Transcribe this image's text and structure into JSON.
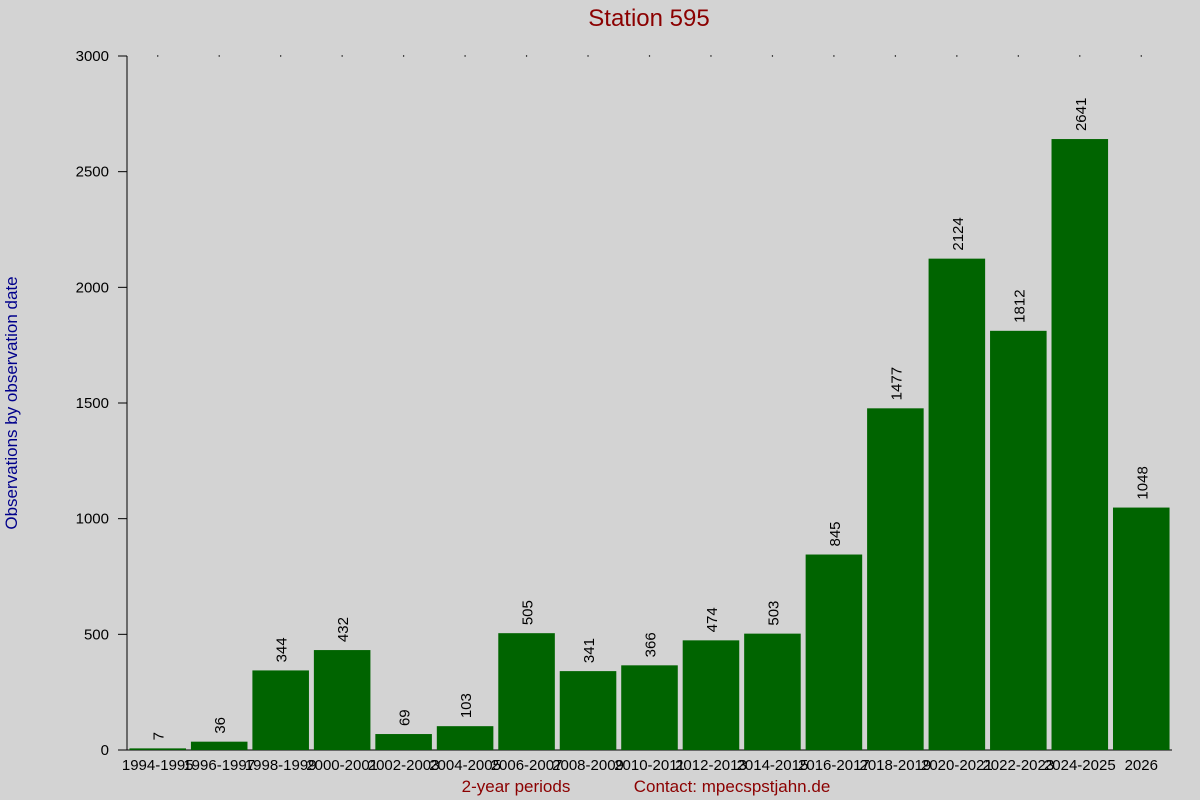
{
  "chart_data": {
    "type": "bar",
    "title": "Station 595",
    "ylabel": "Observations by observation date",
    "xlabel": "2-year periods",
    "annotation": "Contact: mpecspstjahn.de",
    "categories": [
      "1994-1995",
      "1996-1997",
      "1998-1999",
      "2000-2001",
      "2002-2003",
      "2004-2005",
      "2006-2007",
      "2008-2009",
      "2010-2011",
      "2012-2013",
      "2014-2015",
      "2016-2017",
      "2018-2019",
      "2020-2021",
      "2022-2023",
      "2024-2025",
      "2026"
    ],
    "values": [
      7,
      36,
      344,
      432,
      69,
      103,
      505,
      341,
      366,
      474,
      503,
      845,
      1477,
      2124,
      1812,
      2641,
      1048
    ],
    "color": "#006400",
    "ylim": [
      0,
      3000
    ],
    "yticks": [
      0,
      500,
      1000,
      1500,
      2000,
      2500,
      3000
    ]
  }
}
